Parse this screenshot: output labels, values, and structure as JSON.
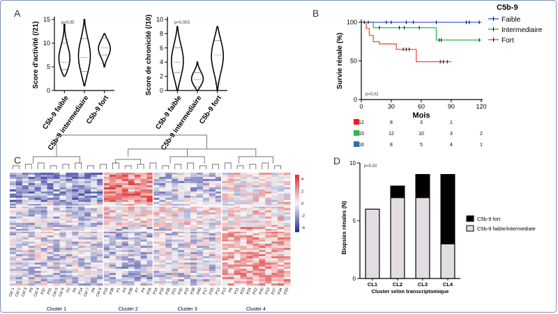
{
  "panels": {
    "A": "A",
    "B": "B",
    "C": "C",
    "D": "D"
  },
  "chart_data": [
    {
      "id": "A1",
      "type": "violin",
      "ylabel": "Score d'activité (/21)",
      "pvalue": "p=0,05",
      "ylim": [
        0,
        15
      ],
      "yticks": [
        0,
        5,
        10,
        15
      ],
      "categories": [
        "C5b-9 faible",
        "C5b-9 intermediaire",
        "C5b-9 fort"
      ],
      "series": [
        {
          "min": 3,
          "max": 14,
          "q1": 4.5,
          "median": 6,
          "q3": 10
        },
        {
          "min": 1,
          "max": 15,
          "q1": 4,
          "median": 7,
          "q3": 11
        },
        {
          "min": 5,
          "max": 12,
          "q1": 7.5,
          "median": 9,
          "q3": 11
        }
      ]
    },
    {
      "id": "A2",
      "type": "violin",
      "ylabel": "Score de chronicité (/10)",
      "pvalue": "p=0,003",
      "ylim": [
        0,
        10
      ],
      "yticks": [
        0,
        2,
        4,
        6,
        8,
        10
      ],
      "categories": [
        "C5b-9 faible",
        "C5b-9 intermediaire",
        "C5b-9 fort"
      ],
      "series": [
        {
          "min": 0,
          "max": 9,
          "q1": 2.5,
          "median": 4,
          "q3": 6
        },
        {
          "min": 0,
          "max": 4,
          "q1": 0.5,
          "median": 1.5,
          "q3": 2.5
        },
        {
          "min": 0,
          "max": 9,
          "q1": 1,
          "median": 5,
          "q3": 7
        }
      ]
    },
    {
      "id": "B",
      "type": "line",
      "title": "C5b-9",
      "xlabel": "Mois",
      "ylabel": "Survie rénale (%)",
      "pvalue": "p=0,02",
      "xlim": [
        0,
        120
      ],
      "xticks": [
        0,
        30,
        60,
        90,
        120
      ],
      "ylim": [
        0,
        100
      ],
      "yticks": [
        0,
        50,
        100
      ],
      "series": [
        {
          "name": "Faible",
          "color": "#3b5bdb",
          "x": [
            0,
            120
          ],
          "y": [
            100,
            100
          ],
          "censors": [
            [
              3,
              100
            ],
            [
              7,
              100
            ],
            [
              25,
              100
            ],
            [
              30,
              100
            ],
            [
              45,
              100
            ],
            [
              52,
              100
            ],
            [
              75,
              100
            ],
            [
              105,
              100
            ],
            [
              108,
              100
            ],
            [
              118,
              100
            ]
          ]
        },
        {
          "name": "Intermediaire",
          "color": "#2fb84a",
          "x": [
            0,
            6,
            12,
            75,
            120
          ],
          "y": [
            100,
            100,
            93,
            77,
            77
          ],
          "censors": [
            [
              18,
              93
            ],
            [
              38,
              93
            ],
            [
              43,
              93
            ],
            [
              58,
              93
            ],
            [
              78,
              77
            ],
            [
              80,
              77
            ],
            [
              118,
              77
            ]
          ]
        },
        {
          "name": "Fort",
          "color": "#e8543a",
          "x": [
            0,
            5,
            8,
            12,
            18,
            35,
            55,
            90
          ],
          "y": [
            100,
            92,
            83,
            75,
            72,
            65,
            49,
            49
          ],
          "censors": [
            [
              42,
              65
            ],
            [
              45,
              65
            ],
            [
              48,
              65
            ],
            [
              79,
              49
            ],
            [
              82,
              49
            ],
            [
              86,
              49
            ]
          ]
        }
      ],
      "risk_table": [
        {
          "color": "#ed1c24",
          "values": [
            "12",
            "8",
            "3",
            "1",
            ""
          ]
        },
        {
          "color": "#2fb84a",
          "values": [
            "15",
            "12",
            "10",
            "3",
            "2"
          ]
        },
        {
          "color": "#2e6eb5",
          "values": [
            "16",
            "8",
            "5",
            "4",
            "1"
          ]
        }
      ]
    },
    {
      "id": "C",
      "type": "heatmap",
      "colorbar": {
        "ticks": [
          "4",
          "2",
          "0",
          "-2",
          "-4"
        ]
      },
      "columns": [
        "Ctrl 1",
        "Ctrl 2",
        "Ctrl 3",
        "P9",
        "Ctrl 4",
        "P37",
        "P31",
        "Ctrl 5",
        "Ctrl 6",
        "P2",
        "P5",
        "P14",
        "Ctrl 7",
        "P6",
        "Ctrl 8",
        "P19",
        "P36",
        "P1",
        "P3",
        "P38",
        "P7",
        "P4",
        "P26",
        "P16",
        "P33",
        "P35",
        "P21",
        "P32",
        "P15",
        "P39",
        "P40",
        "P17",
        "P25",
        "P12",
        "P13",
        "P8",
        "P11",
        "P23",
        "P24",
        "P22",
        "P30",
        "P10",
        "P27",
        "P34",
        "P20"
      ],
      "clusters": [
        {
          "label": "Cluster 1",
          "size": 15
        },
        {
          "label": "Cluster 2",
          "size": 8
        },
        {
          "label": "Cluster 3",
          "size": 11
        },
        {
          "label": "Cluster  4",
          "size": 11
        }
      ]
    },
    {
      "id": "D",
      "type": "stacked_bar",
      "pvalue": "p=0,02",
      "xlabel": "Cluster selon transcriptomique",
      "ylabel": "Biopsies rénales (N)",
      "ylim": [
        0,
        10
      ],
      "yticks": [
        0,
        5,
        10
      ],
      "categories": [
        "CL1",
        "CL2",
        "CL3",
        "CL4"
      ],
      "series": [
        {
          "name": "C5b-9 faible/intermediate",
          "color": "#e3dde3",
          "values": [
            6,
            7,
            7,
            3
          ]
        },
        {
          "name": "C5b-9 fort",
          "color": "#000000",
          "values": [
            0,
            1,
            2,
            6
          ]
        }
      ]
    }
  ]
}
